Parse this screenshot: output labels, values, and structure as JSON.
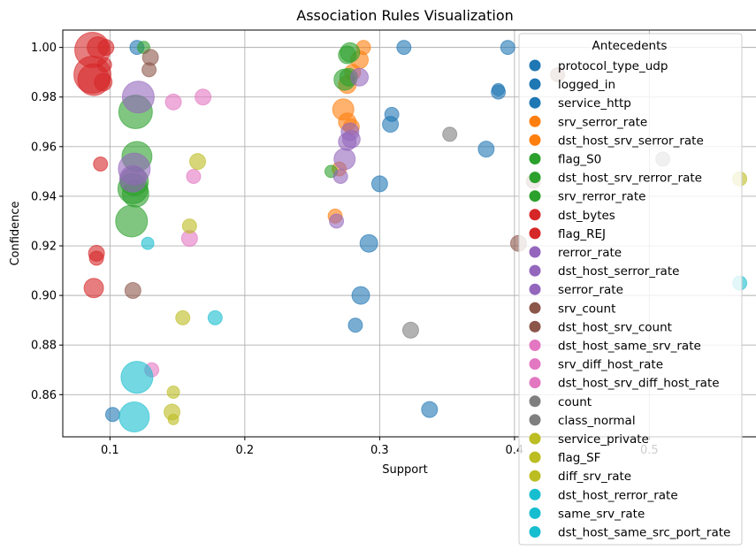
{
  "chart_data": {
    "type": "scatter",
    "title": "Association Rules Visualization",
    "xlabel": "Support",
    "ylabel": "Confidence",
    "xlim": [
      0.065,
      0.585
    ],
    "ylim": [
      0.843,
      1.007
    ],
    "xticks": [
      0.1,
      0.2,
      0.3,
      0.4,
      0.5
    ],
    "xtick_labels": [
      "0.1",
      "0.2",
      "0.3",
      "0.4",
      "0.5"
    ],
    "yticks": [
      0.86,
      0.88,
      0.9,
      0.92,
      0.94,
      0.96,
      0.98,
      1.0
    ],
    "ytick_labels": [
      "0.86",
      "0.88",
      "0.90",
      "0.92",
      "0.94",
      "0.96",
      "0.98",
      "1.00"
    ],
    "grid": true,
    "legend": {
      "title": "Antecedents",
      "placement": "right",
      "entries": [
        {
          "label": "protocol_type_udp",
          "color": "#1f77b4"
        },
        {
          "label": "logged_in",
          "color": "#1f77b4"
        },
        {
          "label": "service_http",
          "color": "#1f77b4"
        },
        {
          "label": "srv_serror_rate",
          "color": "#ff7f0e"
        },
        {
          "label": "dst_host_srv_serror_rate",
          "color": "#ff7f0e"
        },
        {
          "label": "flag_S0",
          "color": "#2ca02c"
        },
        {
          "label": "dst_host_srv_rerror_rate",
          "color": "#2ca02c"
        },
        {
          "label": "srv_rerror_rate",
          "color": "#2ca02c"
        },
        {
          "label": "dst_bytes",
          "color": "#d62728"
        },
        {
          "label": "flag_REJ",
          "color": "#d62728"
        },
        {
          "label": "rerror_rate",
          "color": "#9467bd"
        },
        {
          "label": "dst_host_serror_rate",
          "color": "#9467bd"
        },
        {
          "label": "serror_rate",
          "color": "#9467bd"
        },
        {
          "label": "srv_count",
          "color": "#8c564b"
        },
        {
          "label": "dst_host_srv_count",
          "color": "#8c564b"
        },
        {
          "label": "dst_host_same_srv_rate",
          "color": "#e377c2"
        },
        {
          "label": "srv_diff_host_rate",
          "color": "#e377c2"
        },
        {
          "label": "dst_host_srv_diff_host_rate",
          "color": "#e377c2"
        },
        {
          "label": "count",
          "color": "#7f7f7f"
        },
        {
          "label": "class_normal",
          "color": "#7f7f7f"
        },
        {
          "label": "service_private",
          "color": "#bcbd22"
        },
        {
          "label": "flag_SF",
          "color": "#bcbd22"
        },
        {
          "label": "diff_srv_rate",
          "color": "#bcbd22"
        },
        {
          "label": "dst_host_rerror_rate",
          "color": "#17becf"
        },
        {
          "label": "same_srv_rate",
          "color": "#17becf"
        },
        {
          "label": "dst_host_same_src_port_rate",
          "color": "#17becf"
        }
      ]
    },
    "marker_alpha": 0.6,
    "points": [
      {
        "x": 0.12,
        "y": 1.0,
        "r": 8,
        "color": "#1f77b4"
      },
      {
        "x": 0.318,
        "y": 1.0,
        "r": 8,
        "color": "#1f77b4"
      },
      {
        "x": 0.395,
        "y": 1.0,
        "r": 8,
        "color": "#1f77b4"
      },
      {
        "x": 0.388,
        "y": 0.982,
        "r": 8,
        "color": "#1f77b4"
      },
      {
        "x": 0.388,
        "y": 0.983,
        "r": 7,
        "color": "#1f77b4"
      },
      {
        "x": 0.309,
        "y": 0.973,
        "r": 8,
        "color": "#1f77b4"
      },
      {
        "x": 0.308,
        "y": 0.969,
        "r": 9,
        "color": "#1f77b4"
      },
      {
        "x": 0.379,
        "y": 0.959,
        "r": 9,
        "color": "#1f77b4"
      },
      {
        "x": 0.3,
        "y": 0.945,
        "r": 9,
        "color": "#1f77b4"
      },
      {
        "x": 0.292,
        "y": 0.921,
        "r": 10,
        "color": "#1f77b4"
      },
      {
        "x": 0.286,
        "y": 0.9,
        "r": 10,
        "color": "#1f77b4"
      },
      {
        "x": 0.282,
        "y": 0.888,
        "r": 8,
        "color": "#1f77b4"
      },
      {
        "x": 0.337,
        "y": 0.854,
        "r": 9,
        "color": "#1f77b4"
      },
      {
        "x": 0.102,
        "y": 0.852,
        "r": 8,
        "color": "#1f77b4"
      },
      {
        "x": 0.288,
        "y": 1.0,
        "r": 8,
        "color": "#ff7f0e"
      },
      {
        "x": 0.285,
        "y": 0.995,
        "r": 10,
        "color": "#ff7f0e"
      },
      {
        "x": 0.28,
        "y": 0.99,
        "r": 9,
        "color": "#ff7f0e"
      },
      {
        "x": 0.276,
        "y": 0.985,
        "r": 10,
        "color": "#ff7f0e"
      },
      {
        "x": 0.273,
        "y": 0.975,
        "r": 12,
        "color": "#ff7f0e"
      },
      {
        "x": 0.276,
        "y": 0.97,
        "r": 10,
        "color": "#ff7f0e"
      },
      {
        "x": 0.279,
        "y": 0.968,
        "r": 9,
        "color": "#ff7f0e"
      },
      {
        "x": 0.267,
        "y": 0.932,
        "r": 8,
        "color": "#ff7f0e"
      },
      {
        "x": 0.27,
        "y": 0.951,
        "r": 8,
        "color": "#ff7f0e"
      },
      {
        "x": 0.125,
        "y": 1.0,
        "r": 7,
        "color": "#2ca02c"
      },
      {
        "x": 0.278,
        "y": 0.998,
        "r": 11,
        "color": "#2ca02c"
      },
      {
        "x": 0.276,
        "y": 0.997,
        "r": 10,
        "color": "#2ca02c"
      },
      {
        "x": 0.274,
        "y": 0.987,
        "r": 12,
        "color": "#2ca02c"
      },
      {
        "x": 0.277,
        "y": 0.988,
        "r": 10,
        "color": "#2ca02c"
      },
      {
        "x": 0.119,
        "y": 0.974,
        "r": 19,
        "color": "#2ca02c"
      },
      {
        "x": 0.12,
        "y": 0.956,
        "r": 17,
        "color": "#2ca02c"
      },
      {
        "x": 0.118,
        "y": 0.946,
        "r": 16,
        "color": "#2ca02c"
      },
      {
        "x": 0.117,
        "y": 0.943,
        "r": 17,
        "color": "#2ca02c"
      },
      {
        "x": 0.119,
        "y": 0.941,
        "r": 15,
        "color": "#2ca02c"
      },
      {
        "x": 0.116,
        "y": 0.93,
        "r": 18,
        "color": "#2ca02c"
      },
      {
        "x": 0.264,
        "y": 0.95,
        "r": 7,
        "color": "#2ca02c"
      },
      {
        "x": 0.087,
        "y": 0.999,
        "r": 20,
        "color": "#d62728"
      },
      {
        "x": 0.091,
        "y": 1.0,
        "r": 12,
        "color": "#d62728"
      },
      {
        "x": 0.097,
        "y": 1.0,
        "r": 9,
        "color": "#d62728"
      },
      {
        "x": 0.087,
        "y": 0.989,
        "r": 21,
        "color": "#d62728"
      },
      {
        "x": 0.088,
        "y": 0.987,
        "r": 18,
        "color": "#d62728"
      },
      {
        "x": 0.096,
        "y": 0.993,
        "r": 8,
        "color": "#d62728"
      },
      {
        "x": 0.095,
        "y": 0.986,
        "r": 10,
        "color": "#d62728"
      },
      {
        "x": 0.093,
        "y": 0.953,
        "r": 8,
        "color": "#d62728"
      },
      {
        "x": 0.09,
        "y": 0.917,
        "r": 9,
        "color": "#d62728"
      },
      {
        "x": 0.09,
        "y": 0.915,
        "r": 8,
        "color": "#d62728"
      },
      {
        "x": 0.088,
        "y": 0.903,
        "r": 11,
        "color": "#d62728"
      },
      {
        "x": 0.121,
        "y": 0.98,
        "r": 18,
        "color": "#9467bd"
      },
      {
        "x": 0.118,
        "y": 0.951,
        "r": 18,
        "color": "#9467bd"
      },
      {
        "x": 0.117,
        "y": 0.947,
        "r": 15,
        "color": "#9467bd"
      },
      {
        "x": 0.285,
        "y": 0.988,
        "r": 10,
        "color": "#9467bd"
      },
      {
        "x": 0.278,
        "y": 0.966,
        "r": 10,
        "color": "#9467bd"
      },
      {
        "x": 0.279,
        "y": 0.963,
        "r": 10,
        "color": "#9467bd"
      },
      {
        "x": 0.276,
        "y": 0.962,
        "r": 10,
        "color": "#9467bd"
      },
      {
        "x": 0.274,
        "y": 0.955,
        "r": 12,
        "color": "#9467bd"
      },
      {
        "x": 0.271,
        "y": 0.948,
        "r": 8,
        "color": "#9467bd"
      },
      {
        "x": 0.268,
        "y": 0.93,
        "r": 8,
        "color": "#9467bd"
      },
      {
        "x": 0.13,
        "y": 0.996,
        "r": 9,
        "color": "#8c564b"
      },
      {
        "x": 0.129,
        "y": 0.991,
        "r": 8,
        "color": "#8c564b"
      },
      {
        "x": 0.117,
        "y": 0.902,
        "r": 9,
        "color": "#8c564b"
      },
      {
        "x": 0.414,
        "y": 0.946,
        "r": 8,
        "color": "#8c564b"
      },
      {
        "x": 0.403,
        "y": 0.921,
        "r": 9,
        "color": "#8c564b"
      },
      {
        "x": 0.432,
        "y": 0.989,
        "r": 8,
        "color": "#8c564b"
      },
      {
        "x": 0.147,
        "y": 0.978,
        "r": 9,
        "color": "#e377c2"
      },
      {
        "x": 0.169,
        "y": 0.98,
        "r": 9,
        "color": "#e377c2"
      },
      {
        "x": 0.162,
        "y": 0.948,
        "r": 8,
        "color": "#e377c2"
      },
      {
        "x": 0.159,
        "y": 0.923,
        "r": 9,
        "color": "#e377c2"
      },
      {
        "x": 0.131,
        "y": 0.87,
        "r": 8,
        "color": "#e377c2"
      },
      {
        "x": 0.352,
        "y": 0.965,
        "r": 8,
        "color": "#7f7f7f"
      },
      {
        "x": 0.323,
        "y": 0.886,
        "r": 9,
        "color": "#7f7f7f"
      },
      {
        "x": 0.165,
        "y": 0.954,
        "r": 9,
        "color": "#bcbd22"
      },
      {
        "x": 0.159,
        "y": 0.928,
        "r": 8,
        "color": "#bcbd22"
      },
      {
        "x": 0.154,
        "y": 0.891,
        "r": 8,
        "color": "#bcbd22"
      },
      {
        "x": 0.147,
        "y": 0.861,
        "r": 7,
        "color": "#bcbd22"
      },
      {
        "x": 0.146,
        "y": 0.853,
        "r": 9,
        "color": "#bcbd22"
      },
      {
        "x": 0.147,
        "y": 0.85,
        "r": 6,
        "color": "#bcbd22"
      },
      {
        "x": 0.567,
        "y": 0.947,
        "r": 8,
        "color": "#bcbd22"
      },
      {
        "x": 0.12,
        "y": 0.867,
        "r": 18,
        "color": "#17becf"
      },
      {
        "x": 0.118,
        "y": 0.851,
        "r": 17,
        "color": "#17becf"
      },
      {
        "x": 0.128,
        "y": 0.921,
        "r": 7,
        "color": "#17becf"
      },
      {
        "x": 0.178,
        "y": 0.891,
        "r": 8,
        "color": "#17becf"
      },
      {
        "x": 0.567,
        "y": 0.905,
        "r": 8,
        "color": "#17becf"
      },
      {
        "x": 0.51,
        "y": 0.955,
        "r": 8,
        "color": "#7f7f7f"
      }
    ]
  }
}
